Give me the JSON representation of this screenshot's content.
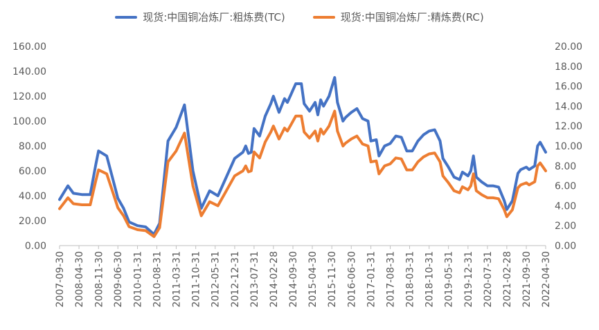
{
  "chart_data": {
    "type": "line",
    "title": "",
    "xlabel": "",
    "ylabel": "",
    "x_tick_labels": [
      "2007-09-30",
      "2008-04-30",
      "2008-11-30",
      "2009-06-30",
      "2010-01-31",
      "2010-08-31",
      "2011-03-31",
      "2011-10-31",
      "2012-05-31",
      "2012-12-31",
      "2013-07-31",
      "2014-02-28",
      "2014-09-30",
      "2015-04-30",
      "2015-11-30",
      "2016-06-30",
      "2017-01-31",
      "2017-08-31",
      "2018-03-31",
      "2018-10-31",
      "2019-05-31",
      "2019-12-31",
      "2020-07-31",
      "2021-02-28",
      "2021-09-30",
      "2022-04-30"
    ],
    "y_left": {
      "ylim": [
        0,
        160
      ],
      "ticks": [
        "0.00",
        "20.00",
        "40.00",
        "60.00",
        "80.00",
        "100.00",
        "120.00",
        "140.00",
        "160.00"
      ]
    },
    "y_right": {
      "ylim": [
        0,
        20
      ],
      "ticks": [
        "0.00",
        "2.00",
        "4.00",
        "6.00",
        "8.00",
        "10.00",
        "12.00",
        "14.00",
        "16.00",
        "18.00",
        "20.00"
      ]
    },
    "legend_position": "top",
    "series": [
      {
        "name": "现货:中国铜冶炼厂:粗炼费(TC)",
        "axis": "left",
        "color": "#4472C4",
        "points": [
          [
            "2007-09-30",
            37
          ],
          [
            "2007-12-31",
            48
          ],
          [
            "2008-02-29",
            42
          ],
          [
            "2008-05-31",
            41
          ],
          [
            "2008-08-31",
            41
          ],
          [
            "2008-10-31",
            65
          ],
          [
            "2008-11-30",
            76
          ],
          [
            "2009-02-28",
            72
          ],
          [
            "2009-04-30",
            55
          ],
          [
            "2009-06-30",
            38
          ],
          [
            "2009-08-31",
            30
          ],
          [
            "2009-10-31",
            19
          ],
          [
            "2010-01-31",
            16
          ],
          [
            "2010-04-30",
            15
          ],
          [
            "2010-07-31",
            9
          ],
          [
            "2010-09-30",
            18
          ],
          [
            "2010-12-31",
            84
          ],
          [
            "2011-03-31",
            95
          ],
          [
            "2011-06-30",
            113
          ],
          [
            "2011-09-30",
            60
          ],
          [
            "2011-12-31",
            30
          ],
          [
            "2012-03-31",
            44
          ],
          [
            "2012-06-30",
            40
          ],
          [
            "2012-09-30",
            55
          ],
          [
            "2012-12-31",
            70
          ],
          [
            "2013-03-31",
            75
          ],
          [
            "2013-04-30",
            80
          ],
          [
            "2013-05-31",
            74
          ],
          [
            "2013-06-30",
            75
          ],
          [
            "2013-07-31",
            94
          ],
          [
            "2013-09-30",
            88
          ],
          [
            "2013-11-30",
            104
          ],
          [
            "2014-01-31",
            114
          ],
          [
            "2014-02-28",
            120
          ],
          [
            "2014-04-30",
            107
          ],
          [
            "2014-06-30",
            118
          ],
          [
            "2014-07-31",
            115
          ],
          [
            "2014-08-31",
            120
          ],
          [
            "2014-10-31",
            130
          ],
          [
            "2014-12-31",
            130
          ],
          [
            "2015-01-31",
            114
          ],
          [
            "2015-03-31",
            108
          ],
          [
            "2015-05-31",
            115
          ],
          [
            "2015-06-30",
            105
          ],
          [
            "2015-07-31",
            117
          ],
          [
            "2015-08-31",
            112
          ],
          [
            "2015-10-31",
            120
          ],
          [
            "2015-12-31",
            135
          ],
          [
            "2016-01-31",
            115
          ],
          [
            "2016-03-31",
            100
          ],
          [
            "2016-04-30",
            103
          ],
          [
            "2016-06-30",
            107
          ],
          [
            "2016-08-31",
            110
          ],
          [
            "2016-10-31",
            102
          ],
          [
            "2016-12-31",
            100
          ],
          [
            "2017-01-31",
            84
          ],
          [
            "2017-03-31",
            85
          ],
          [
            "2017-04-30",
            72
          ],
          [
            "2017-06-30",
            80
          ],
          [
            "2017-08-31",
            82
          ],
          [
            "2017-10-31",
            88
          ],
          [
            "2017-12-31",
            87
          ],
          [
            "2018-02-28",
            76
          ],
          [
            "2018-04-30",
            76
          ],
          [
            "2018-06-30",
            84
          ],
          [
            "2018-08-31",
            89
          ],
          [
            "2018-10-31",
            92
          ],
          [
            "2018-12-31",
            93
          ],
          [
            "2019-02-28",
            84
          ],
          [
            "2019-03-31",
            70
          ],
          [
            "2019-05-31",
            63
          ],
          [
            "2019-07-31",
            55
          ],
          [
            "2019-09-30",
            53
          ],
          [
            "2019-10-31",
            59
          ],
          [
            "2019-12-31",
            56
          ],
          [
            "2020-01-31",
            60
          ],
          [
            "2020-02-29",
            72
          ],
          [
            "2020-03-31",
            55
          ],
          [
            "2020-05-31",
            51
          ],
          [
            "2020-07-31",
            48
          ],
          [
            "2020-09-30",
            48
          ],
          [
            "2020-11-30",
            47
          ],
          [
            "2021-01-31",
            36
          ],
          [
            "2021-02-28",
            29
          ],
          [
            "2021-04-30",
            36
          ],
          [
            "2021-06-30",
            58
          ],
          [
            "2021-07-31",
            61
          ],
          [
            "2021-09-30",
            63
          ],
          [
            "2021-10-31",
            61
          ],
          [
            "2021-12-31",
            64
          ],
          [
            "2022-01-31",
            80
          ],
          [
            "2022-02-28",
            83
          ],
          [
            "2022-03-31",
            79
          ],
          [
            "2022-04-30",
            75
          ]
        ]
      },
      {
        "name": "现货:中国铜冶炼厂:精炼费(RC)",
        "axis": "right",
        "color": "#ED7D31",
        "points": [
          [
            "2007-09-30",
            3.7
          ],
          [
            "2007-12-31",
            4.8
          ],
          [
            "2008-02-29",
            4.2
          ],
          [
            "2008-05-31",
            4.1
          ],
          [
            "2008-08-31",
            4.1
          ],
          [
            "2008-10-31",
            6.5
          ],
          [
            "2008-11-30",
            7.6
          ],
          [
            "2009-02-28",
            7.2
          ],
          [
            "2009-04-30",
            5.5
          ],
          [
            "2009-06-30",
            3.8
          ],
          [
            "2009-08-31",
            3.0
          ],
          [
            "2009-10-31",
            1.9
          ],
          [
            "2010-01-31",
            1.6
          ],
          [
            "2010-04-30",
            1.5
          ],
          [
            "2010-07-31",
            0.9
          ],
          [
            "2010-09-30",
            1.8
          ],
          [
            "2010-12-31",
            8.4
          ],
          [
            "2011-03-31",
            9.5
          ],
          [
            "2011-06-30",
            11.3
          ],
          [
            "2011-09-30",
            6.0
          ],
          [
            "2011-12-31",
            3.0
          ],
          [
            "2012-03-31",
            4.4
          ],
          [
            "2012-06-30",
            4.0
          ],
          [
            "2012-09-30",
            5.5
          ],
          [
            "2012-12-31",
            7.0
          ],
          [
            "2013-03-31",
            7.5
          ],
          [
            "2013-04-30",
            8.0
          ],
          [
            "2013-05-31",
            7.4
          ],
          [
            "2013-06-30",
            7.5
          ],
          [
            "2013-07-31",
            9.4
          ],
          [
            "2013-09-30",
            8.8
          ],
          [
            "2013-11-30",
            10.4
          ],
          [
            "2014-01-31",
            11.4
          ],
          [
            "2014-02-28",
            12.0
          ],
          [
            "2014-04-30",
            10.7
          ],
          [
            "2014-06-30",
            11.8
          ],
          [
            "2014-07-31",
            11.5
          ],
          [
            "2014-08-31",
            12.0
          ],
          [
            "2014-10-31",
            13.0
          ],
          [
            "2014-12-31",
            13.0
          ],
          [
            "2015-01-31",
            11.4
          ],
          [
            "2015-03-31",
            10.8
          ],
          [
            "2015-05-31",
            11.5
          ],
          [
            "2015-06-30",
            10.5
          ],
          [
            "2015-07-31",
            11.7
          ],
          [
            "2015-08-31",
            11.2
          ],
          [
            "2015-10-31",
            12.0
          ],
          [
            "2015-12-31",
            13.5
          ],
          [
            "2016-01-31",
            11.5
          ],
          [
            "2016-03-31",
            10.0
          ],
          [
            "2016-04-30",
            10.3
          ],
          [
            "2016-06-30",
            10.7
          ],
          [
            "2016-08-31",
            11.0
          ],
          [
            "2016-10-31",
            10.2
          ],
          [
            "2016-12-31",
            10.0
          ],
          [
            "2017-01-31",
            8.4
          ],
          [
            "2017-03-31",
            8.5
          ],
          [
            "2017-04-30",
            7.2
          ],
          [
            "2017-06-30",
            8.0
          ],
          [
            "2017-08-31",
            8.2
          ],
          [
            "2017-10-31",
            8.8
          ],
          [
            "2017-12-31",
            8.7
          ],
          [
            "2018-02-28",
            7.6
          ],
          [
            "2018-04-30",
            7.6
          ],
          [
            "2018-06-30",
            8.4
          ],
          [
            "2018-08-31",
            8.9
          ],
          [
            "2018-10-31",
            9.2
          ],
          [
            "2018-12-31",
            9.3
          ],
          [
            "2019-02-28",
            8.4
          ],
          [
            "2019-03-31",
            7.0
          ],
          [
            "2019-05-31",
            6.3
          ],
          [
            "2019-07-31",
            5.5
          ],
          [
            "2019-09-30",
            5.3
          ],
          [
            "2019-10-31",
            5.9
          ],
          [
            "2019-12-31",
            5.6
          ],
          [
            "2020-01-31",
            6.0
          ],
          [
            "2020-02-29",
            7.2
          ],
          [
            "2020-03-31",
            5.5
          ],
          [
            "2020-05-31",
            5.1
          ],
          [
            "2020-07-31",
            4.8
          ],
          [
            "2020-09-30",
            4.8
          ],
          [
            "2020-11-30",
            4.7
          ],
          [
            "2021-01-31",
            3.6
          ],
          [
            "2021-02-28",
            2.9
          ],
          [
            "2021-04-30",
            3.6
          ],
          [
            "2021-06-30",
            5.8
          ],
          [
            "2021-07-31",
            6.1
          ],
          [
            "2021-09-30",
            6.3
          ],
          [
            "2021-10-31",
            6.1
          ],
          [
            "2021-12-31",
            6.4
          ],
          [
            "2022-01-31",
            8.0
          ],
          [
            "2022-02-28",
            8.3
          ],
          [
            "2022-03-31",
            7.9
          ],
          [
            "2022-04-30",
            7.5
          ]
        ]
      }
    ]
  }
}
